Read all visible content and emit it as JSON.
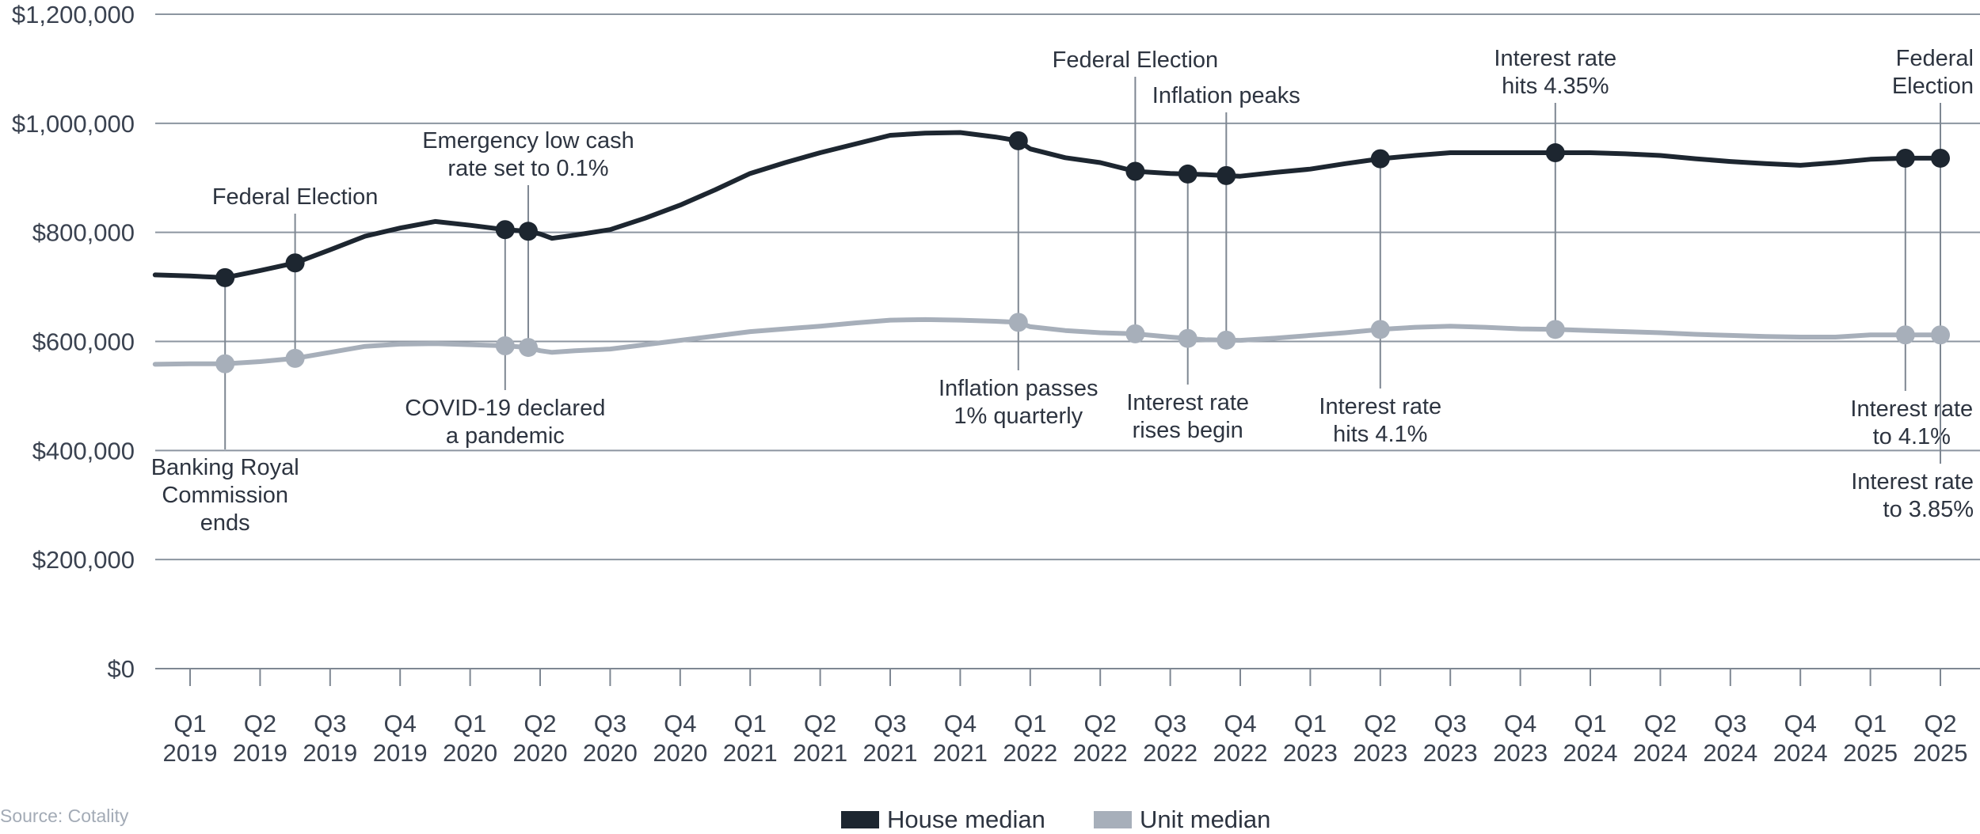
{
  "chart_data": {
    "type": "line",
    "categories": [
      "Q1 2019",
      "Q2 2019",
      "Q3 2019",
      "Q4 2019",
      "Q1 2020",
      "Q2 2020",
      "Q3 2020",
      "Q4 2020",
      "Q1 2021",
      "Q2 2021",
      "Q3 2021",
      "Q4 2021",
      "Q1 2022",
      "Q2 2022",
      "Q3 2022",
      "Q4 2022",
      "Q1 2023",
      "Q2 2023",
      "Q3 2023",
      "Q4 2023",
      "Q1 2024",
      "Q2 2024",
      "Q3 2024",
      "Q4 2024",
      "Q1 2025",
      "Q2 2025"
    ],
    "x_tick_labels": [
      [
        "Q1",
        "2019"
      ],
      [
        "Q2",
        "2019"
      ],
      [
        "Q3",
        "2019"
      ],
      [
        "Q4",
        "2019"
      ],
      [
        "Q1",
        "2020"
      ],
      [
        "Q2",
        "2020"
      ],
      [
        "Q3",
        "2020"
      ],
      [
        "Q4",
        "2020"
      ],
      [
        "Q1",
        "2021"
      ],
      [
        "Q2",
        "2021"
      ],
      [
        "Q3",
        "2021"
      ],
      [
        "Q4",
        "2021"
      ],
      [
        "Q1",
        "2022"
      ],
      [
        "Q2",
        "2022"
      ],
      [
        "Q3",
        "2022"
      ],
      [
        "Q4",
        "2022"
      ],
      [
        "Q1",
        "2023"
      ],
      [
        "Q2",
        "2023"
      ],
      [
        "Q3",
        "2023"
      ],
      [
        "Q4",
        "2023"
      ],
      [
        "Q1",
        "2024"
      ],
      [
        "Q2",
        "2024"
      ],
      [
        "Q3",
        "2024"
      ],
      [
        "Q4",
        "2024"
      ],
      [
        "Q1",
        "2025"
      ],
      [
        "Q2",
        "2025"
      ]
    ],
    "y_ticks": [
      0,
      200000,
      400000,
      600000,
      800000,
      1000000,
      1200000
    ],
    "y_tick_labels": [
      "$0",
      "$200,000",
      "$400,000",
      "$600,000",
      "$800,000",
      "$1,000,000",
      "$1,200,000"
    ],
    "ylim": [
      0,
      1200000
    ],
    "xlim": [
      -0.5,
      25
    ],
    "grid": "horizontal",
    "legend_position": "bottom",
    "series": [
      {
        "name": "House median",
        "color": "#1d2630",
        "x": [
          -0.5,
          0,
          0.5,
          1,
          1.5,
          2,
          2.5,
          3,
          3.5,
          4,
          4.5,
          4.83,
          5,
          5.17,
          5.5,
          6,
          6.5,
          7,
          7.5,
          8,
          8.5,
          9,
          9.5,
          10,
          10.5,
          11,
          11.5,
          11.83,
          12,
          12.5,
          13,
          13.5,
          14,
          14.5,
          15,
          15.5,
          16,
          16.5,
          17,
          17.5,
          18,
          18.5,
          19,
          19.5,
          20,
          20.5,
          21,
          21.5,
          22,
          22.5,
          23,
          23.5,
          24,
          24.5,
          25
        ],
        "values": [
          722000,
          720000,
          717000,
          730000,
          744000,
          768000,
          793000,
          808000,
          820000,
          813000,
          805000,
          802000,
          797000,
          789000,
          795000,
          805000,
          826000,
          850000,
          878000,
          908000,
          928000,
          946000,
          962000,
          978000,
          982000,
          983000,
          975000,
          968000,
          953000,
          937000,
          928000,
          912000,
          908000,
          906000,
          903000,
          910000,
          916000,
          926000,
          935000,
          941000,
          946000,
          946000,
          946000,
          946000,
          946000,
          944000,
          941000,
          935000,
          930000,
          926000,
          923000,
          928000,
          934000,
          936000,
          936000
        ]
      },
      {
        "name": "Unit median",
        "color": "#a7afba",
        "x": [
          -0.5,
          0,
          0.5,
          1,
          1.5,
          2,
          2.5,
          3,
          3.5,
          4,
          4.5,
          4.83,
          5,
          5.17,
          5.5,
          6,
          6.5,
          7,
          7.5,
          8,
          8.5,
          9,
          9.5,
          10,
          10.5,
          11,
          11.5,
          11.83,
          12,
          12.5,
          13,
          13.5,
          14,
          14.5,
          15,
          15.5,
          16,
          16.5,
          17,
          17.5,
          18,
          18.5,
          19,
          19.5,
          20,
          20.5,
          21,
          21.5,
          22,
          22.5,
          23,
          23.5,
          24,
          24.5,
          25
        ],
        "values": [
          558000,
          559000,
          559000,
          563000,
          569000,
          580000,
          591000,
          595000,
          596000,
          594000,
          592000,
          589000,
          583000,
          580000,
          583000,
          586000,
          594000,
          602000,
          610000,
          618000,
          623000,
          628000,
          634000,
          639000,
          640000,
          639000,
          637000,
          635000,
          627000,
          620000,
          616000,
          614000,
          608000,
          603000,
          602000,
          606000,
          611000,
          616000,
          622000,
          626000,
          628000,
          626000,
          623000,
          622000,
          620000,
          618000,
          616000,
          613000,
          611000,
          609000,
          608000,
          608000,
          612000,
          612000,
          612000
        ]
      }
    ],
    "annotations": [
      {
        "x": 0.5,
        "lines": [
          "Banking Royal",
          "Commission",
          "ends"
        ],
        "side": "below"
      },
      {
        "x": 1.5,
        "lines": [
          "Federal Election"
        ],
        "side": "above"
      },
      {
        "x": 4.5,
        "lines": [
          "COVID-19 declared",
          "a pandemic"
        ],
        "side": "below"
      },
      {
        "x": 4.83,
        "lines": [
          "Emergency low cash",
          "rate set to 0.1%"
        ],
        "side": "above"
      },
      {
        "x": 11.83,
        "lines": [
          "Inflation passes",
          "1% quarterly"
        ],
        "side": "below"
      },
      {
        "x": 13.5,
        "lines": [
          "Federal Election"
        ],
        "side": "above"
      },
      {
        "x": 14.25,
        "lines": [
          "Interest rate",
          "rises begin"
        ],
        "side": "below"
      },
      {
        "x": 14.8,
        "lines": [
          "Inflation peaks"
        ],
        "side": "above"
      },
      {
        "x": 17,
        "lines": [
          "Interest rate",
          "hits 4.1%"
        ],
        "side": "below"
      },
      {
        "x": 19.5,
        "lines": [
          "Interest rate",
          "hits 4.35%"
        ],
        "side": "above"
      },
      {
        "x": 24.5,
        "lines": [
          "Interest rate",
          "to 4.1%"
        ],
        "side": "below"
      },
      {
        "x": 25,
        "lines": [
          "Federal",
          "Election"
        ],
        "side": "above"
      },
      {
        "x": 25,
        "lines": [
          "Interest rate",
          "to 3.85%"
        ],
        "side": "below"
      }
    ],
    "markers_x": [
      0.5,
      1.5,
      4.5,
      4.83,
      11.83,
      13.5,
      14.25,
      14.8,
      17,
      19.5,
      24.5,
      25
    ]
  },
  "source": "Source: Cotality",
  "legend": {
    "house_label": "House median",
    "unit_label": "Unit median",
    "house_color": "#1d2630",
    "unit_color": "#a7afba"
  }
}
